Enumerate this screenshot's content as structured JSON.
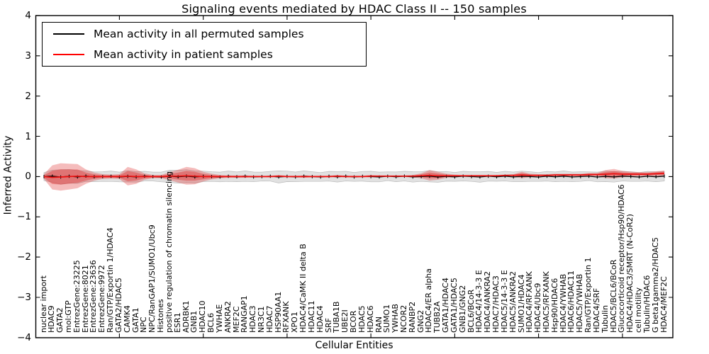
{
  "chart_data": {
    "type": "line",
    "title": "Signaling events mediated by HDAC Class II -- 150 samples",
    "xlabel": "Cellular Entities",
    "ylabel": "Inferred Activity",
    "ylim": [
      -4,
      4
    ],
    "yticks": [
      4,
      3,
      2,
      1,
      0,
      -1,
      -2,
      -3,
      -4
    ],
    "grid": false,
    "legend_position": "upper left",
    "legend": [
      {
        "label": "Mean activity in all permuted samples",
        "color": "#000000"
      },
      {
        "label": "Mean activity in patient samples",
        "color": "#ff0000"
      }
    ],
    "colors": {
      "permuted_line": "#000000",
      "patient_line": "#ee1111",
      "permuted_band": "#c8c8c8",
      "patient_band": "#dd2222",
      "axis": "#000000"
    },
    "categories": [
      "nuclear import",
      "HDAC9",
      "GATA2",
      "mol:GTP",
      "EntrezGene:23225",
      "EntrezGene:8021",
      "EntrezGene:23636",
      "EntrezGene:9972",
      "Ran/GTP/Exportin 1/HDAC4",
      "GATA2/HDAC5",
      "CAMK4",
      "GATA1",
      "NPC",
      "NPC/RanGAP1/SUMO1/Ubc9",
      "Histones",
      "positive regulation of chromatin silencing",
      "ESR1",
      "ADRBK1",
      "GNB1",
      "HDAC10",
      "BCL6",
      "YWHAE",
      "ANKRA2",
      "MEF2C",
      "RANGAP1",
      "HDAC3",
      "NR3C1",
      "HDAC7",
      "HSP90AA1",
      "RFXANK",
      "XPO1",
      "HDAC4/CaMK II delta B",
      "HDAC11",
      "HDAC4",
      "SRF",
      "TUBA1B",
      "UBE2I",
      "BCOR",
      "HDAC5",
      "HDAC6",
      "RAN",
      "SUMO1",
      "YWHAB",
      "NCOR2",
      "RANBP2",
      "GNG2",
      "HDAC4/ER alpha",
      "TUBB2A",
      "GATA1/HDAC4",
      "GATA1/HDAC5",
      "GNB1/GNG2",
      "BCL6/BCoR",
      "HDAC4/14-3-3 E",
      "HDAC4/ANKRA2",
      "HDAC7/HDAC3",
      "HDAC5/14-3-3 E",
      "HDAC5/ANKRA2",
      "SUMO1/HDAC4",
      "HDAC4/RFXANK",
      "HDAC4/Ubc9",
      "HDAC5/RFXANK",
      "Hsp90/HDAC6",
      "HDAC4/YWHAB",
      "HDAC6/HDAC11",
      "HDAC5/YWHAB",
      "Ran/GTP/Exportin 1",
      "HDAC4/SRF",
      "Tubulin",
      "HDAC5/BCL6/BCoR",
      "Glucocorticoid receptor/Hsp90/HDAC6",
      "HDAC4/HDAC3/SMRT (N-CoR2)",
      "cell motility",
      "Tubulin/HDAC6",
      "G beta1gamma2/HDAC5",
      "HDAC4/MEF2C"
    ],
    "series": [
      {
        "name": "Mean activity in all permuted samples",
        "values": [
          0,
          0.01,
          -0.01,
          0.008,
          -0.008,
          0.012,
          -0.006,
          0,
          0.008,
          -0.01,
          0.006,
          -0.008,
          0.01,
          0,
          -0.01,
          0.008,
          -0.006,
          0.01,
          -0.008,
          0.006,
          0,
          -0.01,
          0.008,
          -0.006,
          0.01,
          -0.008,
          0,
          0.008,
          -0.01,
          0.006,
          -0.008,
          0.01,
          0,
          -0.01,
          0.008,
          -0.006,
          0.01,
          -0.008,
          0.006,
          0,
          -0.01,
          0.008,
          -0.006,
          0.01,
          -0.008,
          0,
          0.008,
          -0.01,
          0.006,
          -0.008,
          0.01,
          0,
          -0.01,
          0.008,
          -0.006,
          0.01,
          -0.008,
          0.006,
          0,
          -0.01,
          0.008,
          -0.006,
          0.01,
          -0.008,
          0,
          0.008,
          -0.01,
          0.006,
          -0.008,
          0.01,
          0,
          -0.01,
          0.008,
          -0.006,
          0.01
        ]
      },
      {
        "name": "Mean activity in patient samples",
        "values": [
          0,
          -0.02,
          -0.01,
          0,
          0.01,
          0,
          0,
          0,
          0,
          0,
          0.01,
          0,
          0,
          0,
          0,
          0.01,
          0.01,
          0.02,
          0.01,
          0,
          0,
          0,
          0,
          0,
          0,
          0,
          0,
          0,
          0.01,
          0,
          0,
          0,
          0,
          0,
          0,
          0.01,
          0,
          0,
          0,
          0.01,
          0.01,
          0.01,
          0.01,
          0.01,
          0.01,
          0.02,
          0.03,
          0.02,
          0.02,
          0.02,
          0.02,
          0.02,
          0.02,
          0.02,
          0.02,
          0.03,
          0.03,
          0.04,
          0.03,
          0.03,
          0.03,
          0.04,
          0.04,
          0.04,
          0.04,
          0.05,
          0.05,
          0.06,
          0.07,
          0.06,
          0.06,
          0.06,
          0.06,
          0.07,
          0.08
        ]
      }
    ],
    "bands": [
      {
        "name": "permuted samples range",
        "color": "#c8c8c8",
        "half_heights": [
          0.1,
          0.15,
          0.18,
          0.17,
          0.16,
          0.13,
          0.12,
          0.12,
          0.13,
          0.12,
          0.14,
          0.13,
          0.12,
          0.11,
          0.12,
          0.15,
          0.16,
          0.16,
          0.15,
          0.13,
          0.12,
          0.12,
          0.13,
          0.12,
          0.13,
          0.12,
          0.11,
          0.12,
          0.15,
          0.13,
          0.12,
          0.13,
          0.12,
          0.11,
          0.12,
          0.13,
          0.12,
          0.11,
          0.12,
          0.13,
          0.12,
          0.11,
          0.12,
          0.12,
          0.13,
          0.12,
          0.14,
          0.13,
          0.12,
          0.11,
          0.12,
          0.12,
          0.13,
          0.12,
          0.11,
          0.12,
          0.12,
          0.13,
          0.12,
          0.11,
          0.12,
          0.12,
          0.13,
          0.12,
          0.12,
          0.11,
          0.12,
          0.13,
          0.13,
          0.12,
          0.12,
          0.11,
          0.12,
          0.12,
          0.12
        ]
      },
      {
        "name": "patient samples range",
        "color": "#dd2222",
        "half_heights": [
          0.06,
          0.3,
          0.34,
          0.32,
          0.3,
          0.18,
          0.1,
          0.06,
          0.05,
          0.06,
          0.23,
          0.18,
          0.08,
          0.04,
          0.04,
          0.1,
          0.16,
          0.22,
          0.2,
          0.12,
          0.07,
          0.04,
          0.03,
          0.03,
          0.03,
          0.02,
          0.02,
          0.02,
          0.03,
          0.02,
          0.02,
          0.03,
          0.02,
          0.02,
          0.02,
          0.03,
          0.02,
          0.02,
          0.02,
          0.03,
          0.02,
          0.02,
          0.02,
          0.02,
          0.03,
          0.06,
          0.13,
          0.1,
          0.05,
          0.03,
          0.02,
          0.02,
          0.02,
          0.02,
          0.02,
          0.02,
          0.03,
          0.08,
          0.04,
          0.03,
          0.03,
          0.03,
          0.03,
          0.03,
          0.03,
          0.04,
          0.04,
          0.1,
          0.12,
          0.08,
          0.06,
          0.05,
          0.05,
          0.06,
          0.07
        ]
      }
    ]
  }
}
